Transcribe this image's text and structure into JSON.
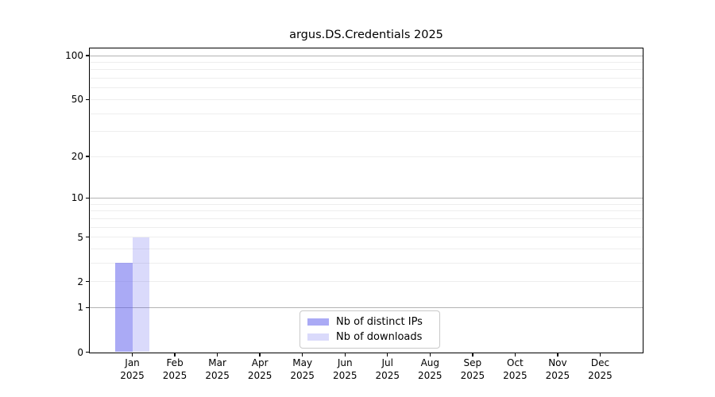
{
  "chart_data": {
    "type": "bar",
    "title": "argus.DS.Credentials 2025",
    "x_axis": {
      "months": [
        "Jan",
        "Feb",
        "Mar",
        "Apr",
        "May",
        "Jun",
        "Jul",
        "Aug",
        "Sep",
        "Oct",
        "Nov",
        "Dec"
      ],
      "year": "2025"
    },
    "categories": [
      "Jan 2025",
      "Feb 2025",
      "Mar 2025",
      "Apr 2025",
      "May 2025",
      "Jun 2025",
      "Jul 2025",
      "Aug 2025",
      "Sep 2025",
      "Oct 2025",
      "Nov 2025",
      "Dec 2025"
    ],
    "series": [
      {
        "name": "Nb of distinct IPs",
        "color": "rgba(85,85,235,0.5)",
        "color_on_white": "#aaaaf5",
        "values": [
          3,
          0,
          0,
          0,
          0,
          0,
          0,
          0,
          0,
          0,
          0,
          0
        ]
      },
      {
        "name": "Nb of downloads",
        "color": "rgba(85,85,235,0.22)",
        "color_on_white": "#d9d9f8",
        "values": [
          5,
          0,
          0,
          0,
          0,
          0,
          0,
          0,
          0,
          0,
          0,
          0
        ]
      }
    ],
    "y_axis": {
      "scale": "symlog",
      "tick_labels": [
        "0",
        "1",
        "2",
        "5",
        "10",
        "20",
        "50",
        "100"
      ],
      "tick_values": [
        0,
        1,
        2,
        5,
        10,
        20,
        50,
        100
      ],
      "major_gridlines": [
        1,
        10,
        100
      ],
      "minor_gridlines": [
        2,
        3,
        4,
        5,
        6,
        7,
        8,
        9,
        20,
        30,
        40,
        50,
        60,
        70,
        80,
        90
      ],
      "top_value": 112,
      "ylim": [
        0,
        112
      ]
    },
    "legend_position": "bottom-center-inside",
    "grid": true
  },
  "colors": {
    "major_grid": "#b3b3b3",
    "minor_grid": "#eeeeee",
    "spine": "#000000",
    "text": "#000000",
    "background": "#ffffff"
  }
}
